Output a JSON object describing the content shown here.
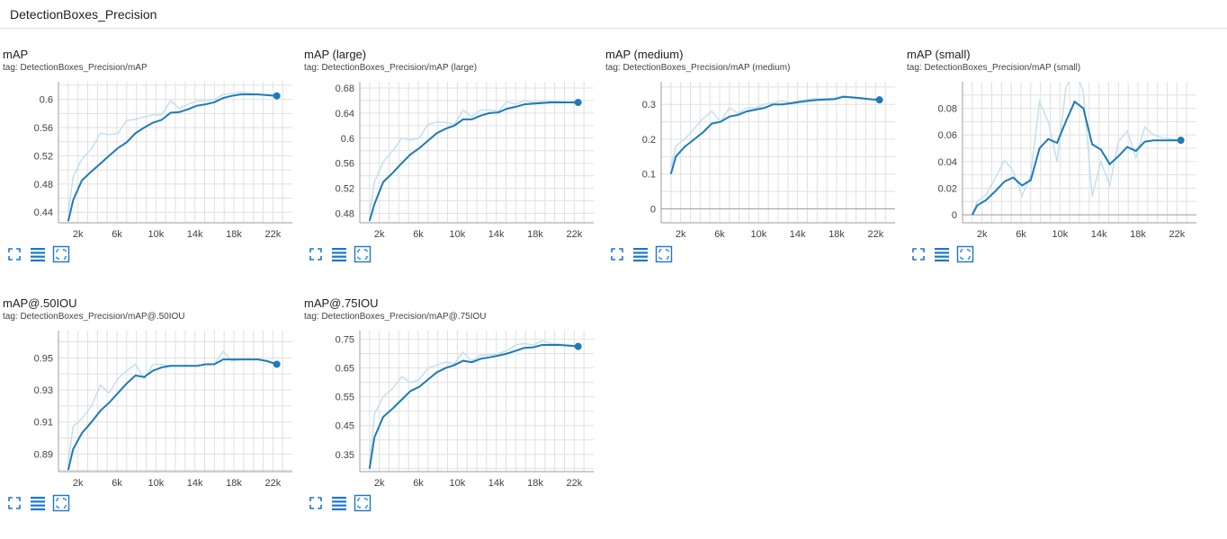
{
  "group": {
    "title": "DetectionBoxes_Precision"
  },
  "colors": {
    "line": "#1e7ab8",
    "raw": "#c3e0f0",
    "grid": "#e0e0e0",
    "axis": "#9e9e9e",
    "tick_text": "#424242",
    "icon": "#1976d2"
  },
  "toolbar": {
    "icons": [
      "expand-icon",
      "list-icon",
      "fit-domain-icon"
    ]
  },
  "chart_data": [
    {
      "type": "line",
      "title": "mAP",
      "tag": "tag: DetectionBoxes_Precision/mAP",
      "xlim": [
        0,
        24000
      ],
      "ylim": [
        0.425,
        0.625
      ],
      "xticks": [
        2000,
        6000,
        10000,
        14000,
        18000,
        22000
      ],
      "xtick_labels": [
        "2k",
        "6k",
        "10k",
        "14k",
        "18k",
        "22k"
      ],
      "yticks": [
        0.44,
        0.48,
        0.52,
        0.56,
        0.6
      ],
      "ytick_labels": [
        "0.44",
        "0.48",
        "0.52",
        "0.56",
        "0.6"
      ],
      "x": [
        1000,
        1500,
        2400,
        3400,
        4300,
        5200,
        6100,
        7000,
        7900,
        8800,
        9700,
        10600,
        11500,
        12400,
        13300,
        14200,
        15100,
        16000,
        16900,
        17800,
        18700,
        19600,
        20500,
        21400,
        22400
      ],
      "series": [
        {
          "role": "smoothed",
          "values": [
            0.427,
            0.457,
            0.485,
            0.498,
            0.509,
            0.52,
            0.531,
            0.539,
            0.552,
            0.56,
            0.567,
            0.571,
            0.581,
            0.582,
            0.586,
            0.591,
            0.593,
            0.596,
            0.602,
            0.605,
            0.607,
            0.607,
            0.607,
            0.606,
            0.605
          ]
        },
        {
          "role": "raw",
          "values": [
            0.44,
            0.49,
            0.515,
            0.53,
            0.552,
            0.55,
            0.552,
            0.57,
            0.572,
            0.575,
            0.578,
            0.578,
            0.598,
            0.587,
            0.593,
            0.598,
            0.598,
            0.6,
            0.607,
            0.608,
            0.61,
            0.609,
            0.607,
            0.606,
            0.604
          ]
        }
      ]
    },
    {
      "type": "line",
      "title": "mAP (large)",
      "tag": "tag: DetectionBoxes_Precision/mAP (large)",
      "xlim": [
        0,
        24000
      ],
      "ylim": [
        0.465,
        0.69
      ],
      "xticks": [
        2000,
        6000,
        10000,
        14000,
        18000,
        22000
      ],
      "xtick_labels": [
        "2k",
        "6k",
        "10k",
        "14k",
        "18k",
        "22k"
      ],
      "yticks": [
        0.48,
        0.52,
        0.56,
        0.6,
        0.64,
        0.68
      ],
      "ytick_labels": [
        "0.48",
        "0.52",
        "0.56",
        "0.6",
        "0.64",
        "0.68"
      ],
      "x": [
        1000,
        1500,
        2400,
        3400,
        4300,
        5200,
        6100,
        7000,
        7900,
        8800,
        9700,
        10600,
        11500,
        12400,
        13300,
        14200,
        15100,
        16000,
        16900,
        17800,
        18700,
        19600,
        20500,
        21400,
        22400
      ],
      "series": [
        {
          "role": "smoothed",
          "values": [
            0.468,
            0.495,
            0.53,
            0.545,
            0.56,
            0.574,
            0.584,
            0.596,
            0.608,
            0.615,
            0.62,
            0.63,
            0.63,
            0.636,
            0.64,
            0.641,
            0.647,
            0.65,
            0.654,
            0.655,
            0.656,
            0.657,
            0.657,
            0.657,
            0.657
          ]
        },
        {
          "role": "raw",
          "values": [
            0.48,
            0.53,
            0.562,
            0.58,
            0.6,
            0.597,
            0.6,
            0.622,
            0.626,
            0.625,
            0.622,
            0.645,
            0.634,
            0.645,
            0.645,
            0.643,
            0.658,
            0.654,
            0.66,
            0.657,
            0.658,
            0.659,
            0.658,
            0.657,
            0.656
          ]
        }
      ]
    },
    {
      "type": "line",
      "title": "mAP (medium)",
      "tag": "tag: DetectionBoxes_Precision/mAP (medium)",
      "xlim": [
        0,
        24000
      ],
      "ylim": [
        -0.04,
        0.365
      ],
      "xticks": [
        2000,
        6000,
        10000,
        14000,
        18000,
        22000
      ],
      "xtick_labels": [
        "2k",
        "6k",
        "10k",
        "14k",
        "18k",
        "22k"
      ],
      "yticks": [
        0,
        0.1,
        0.2,
        0.3
      ],
      "ytick_labels": [
        "0",
        "0.1",
        "0.2",
        "0.3"
      ],
      "x": [
        1000,
        1500,
        2400,
        3400,
        4300,
        5200,
        6100,
        7000,
        7900,
        8800,
        9700,
        10600,
        11500,
        12400,
        13300,
        14200,
        15100,
        16000,
        16900,
        17800,
        18700,
        19600,
        20500,
        21400,
        22400
      ],
      "series": [
        {
          "role": "smoothed",
          "values": [
            0.1,
            0.15,
            0.178,
            0.2,
            0.22,
            0.245,
            0.25,
            0.265,
            0.27,
            0.28,
            0.285,
            0.29,
            0.3,
            0.3,
            0.303,
            0.307,
            0.31,
            0.313,
            0.314,
            0.315,
            0.322,
            0.32,
            0.318,
            0.315,
            0.313
          ]
        },
        {
          "role": "raw",
          "values": [
            0.12,
            0.18,
            0.2,
            0.23,
            0.26,
            0.28,
            0.25,
            0.29,
            0.275,
            0.29,
            0.29,
            0.3,
            0.305,
            0.31,
            0.305,
            0.31,
            0.315,
            0.316,
            0.316,
            0.318,
            0.325,
            0.318,
            0.316,
            0.314,
            0.312
          ]
        }
      ]
    },
    {
      "type": "line",
      "title": "mAP (small)",
      "tag": "tag: DetectionBoxes_Precision/mAP (small)",
      "xlim": [
        0,
        24000
      ],
      "ylim": [
        -0.006,
        0.1
      ],
      "xticks": [
        2000,
        6000,
        10000,
        14000,
        18000,
        22000
      ],
      "xtick_labels": [
        "2k",
        "6k",
        "10k",
        "14k",
        "18k",
        "22k"
      ],
      "yticks": [
        0,
        0.02,
        0.04,
        0.06,
        0.08
      ],
      "ytick_labels": [
        "0",
        "0.02",
        "0.04",
        "0.06",
        "0.08"
      ],
      "x": [
        1000,
        1500,
        2400,
        3400,
        4300,
        5200,
        6100,
        7000,
        7900,
        8800,
        9700,
        10600,
        11500,
        12400,
        13300,
        14200,
        15100,
        16000,
        16900,
        17800,
        18700,
        19600,
        20500,
        21400,
        22400
      ],
      "series": [
        {
          "role": "smoothed",
          "values": [
            0.0,
            0.007,
            0.011,
            0.018,
            0.025,
            0.028,
            0.022,
            0.026,
            0.05,
            0.057,
            0.054,
            0.07,
            0.085,
            0.08,
            0.053,
            0.049,
            0.038,
            0.044,
            0.051,
            0.048,
            0.055,
            0.056,
            0.056,
            0.056,
            0.056
          ]
        },
        {
          "role": "raw",
          "values": [
            0.0,
            0.01,
            0.015,
            0.028,
            0.041,
            0.033,
            0.014,
            0.03,
            0.085,
            0.07,
            0.04,
            0.095,
            0.11,
            0.092,
            0.014,
            0.04,
            0.022,
            0.055,
            0.063,
            0.043,
            0.066,
            0.06,
            0.058,
            0.057,
            0.056
          ]
        }
      ]
    },
    {
      "type": "line",
      "title": "mAP@.50IOU",
      "tag": "tag: DetectionBoxes_Precision/mAP@.50IOU",
      "xlim": [
        0,
        24000
      ],
      "ylim": [
        0.879,
        0.967
      ],
      "xticks": [
        2000,
        6000,
        10000,
        14000,
        18000,
        22000
      ],
      "xtick_labels": [
        "2k",
        "6k",
        "10k",
        "14k",
        "18k",
        "22k"
      ],
      "yticks": [
        0.89,
        0.91,
        0.93,
        0.95
      ],
      "ytick_labels": [
        "0.89",
        "0.91",
        "0.93",
        "0.95"
      ],
      "x": [
        1000,
        1500,
        2400,
        3400,
        4300,
        5200,
        6100,
        7000,
        7900,
        8800,
        9700,
        10600,
        11500,
        12400,
        13300,
        14200,
        15100,
        16000,
        16900,
        17800,
        18700,
        19600,
        20500,
        21400,
        22400
      ],
      "series": [
        {
          "role": "smoothed",
          "values": [
            0.88,
            0.893,
            0.903,
            0.91,
            0.917,
            0.922,
            0.928,
            0.934,
            0.939,
            0.938,
            0.942,
            0.944,
            0.945,
            0.945,
            0.945,
            0.945,
            0.946,
            0.946,
            0.949,
            0.949,
            0.949,
            0.949,
            0.949,
            0.948,
            0.946
          ]
        },
        {
          "role": "raw",
          "values": [
            0.885,
            0.907,
            0.912,
            0.92,
            0.933,
            0.928,
            0.937,
            0.942,
            0.946,
            0.937,
            0.946,
            0.946,
            0.945,
            0.945,
            0.945,
            0.945,
            0.946,
            0.946,
            0.954,
            0.948,
            0.949,
            0.949,
            0.949,
            0.948,
            0.946
          ]
        }
      ]
    },
    {
      "type": "line",
      "title": "mAP@.75IOU",
      "tag": "tag: DetectionBoxes_Precision/mAP@.75IOU",
      "xlim": [
        0,
        24000
      ],
      "ylim": [
        0.29,
        0.78
      ],
      "xticks": [
        2000,
        6000,
        10000,
        14000,
        18000,
        22000
      ],
      "xtick_labels": [
        "2k",
        "6k",
        "10k",
        "14k",
        "18k",
        "22k"
      ],
      "yticks": [
        0.35,
        0.45,
        0.55,
        0.65,
        0.75
      ],
      "ytick_labels": [
        "0.35",
        "0.45",
        "0.55",
        "0.65",
        "0.75"
      ],
      "x": [
        1000,
        1500,
        2400,
        3400,
        4300,
        5200,
        6100,
        7000,
        7900,
        8800,
        9700,
        10600,
        11500,
        12400,
        13300,
        14200,
        15100,
        16000,
        16900,
        17800,
        18700,
        19600,
        20500,
        21400,
        22400
      ],
      "series": [
        {
          "role": "smoothed",
          "values": [
            0.3,
            0.41,
            0.48,
            0.51,
            0.54,
            0.57,
            0.585,
            0.61,
            0.635,
            0.65,
            0.66,
            0.675,
            0.67,
            0.682,
            0.687,
            0.693,
            0.7,
            0.71,
            0.72,
            0.722,
            0.73,
            0.73,
            0.73,
            0.728,
            0.725
          ]
        },
        {
          "role": "raw",
          "values": [
            0.32,
            0.49,
            0.55,
            0.58,
            0.62,
            0.6,
            0.61,
            0.65,
            0.66,
            0.67,
            0.665,
            0.705,
            0.675,
            0.695,
            0.695,
            0.7,
            0.71,
            0.73,
            0.735,
            0.73,
            0.745,
            0.735,
            0.733,
            0.73,
            0.726
          ]
        }
      ]
    }
  ]
}
